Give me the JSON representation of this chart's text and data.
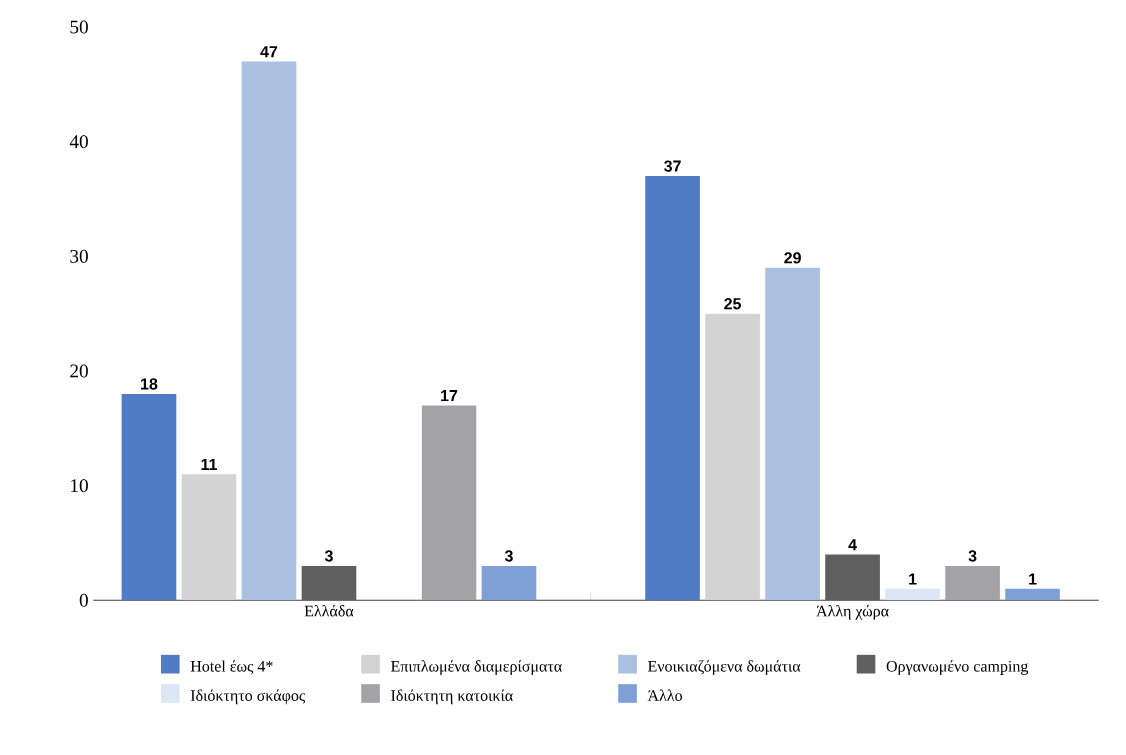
{
  "chart_data": {
    "type": "bar",
    "categories": [
      "Ελλάδα",
      "Άλλη χώρα"
    ],
    "series": [
      {
        "name": "Hotel έως 4*",
        "color": "#4f7cc4",
        "values": [
          18,
          37
        ],
        "value_labels": [
          "18",
          "37"
        ]
      },
      {
        "name": "Επιπλωμένα διαμερίσματα",
        "color": "#d3d3d3",
        "values": [
          11,
          25
        ],
        "value_labels": [
          "11",
          "25"
        ]
      },
      {
        "name": "Ενοικιαζόμενα δωμάτια",
        "color": "#aac0e0",
        "values": [
          47,
          29
        ],
        "value_labels": [
          "47",
          "29"
        ]
      },
      {
        "name": "Οργανωμένο camping",
        "color": "#5f5f5f",
        "values": [
          3,
          4
        ],
        "value_labels": [
          "3",
          "4"
        ]
      },
      {
        "name": "Ιδιόκτητο σκάφος",
        "color": "#dce6f4",
        "values": [
          0,
          1
        ],
        "value_labels": [
          null,
          "1"
        ]
      },
      {
        "name": "Ιδιόκτητη κατοικία",
        "color": "#a3a3a5",
        "values": [
          17,
          3
        ],
        "value_labels": [
          "17",
          "3"
        ]
      },
      {
        "name": "Άλλο",
        "color": "#7ea0d6",
        "values": [
          3,
          1
        ],
        "value_labels": [
          "3",
          "1"
        ]
      }
    ],
    "ylim": [
      0,
      50
    ],
    "yticks": [
      0,
      10,
      20,
      30,
      40,
      50
    ],
    "legend": "bottom"
  }
}
